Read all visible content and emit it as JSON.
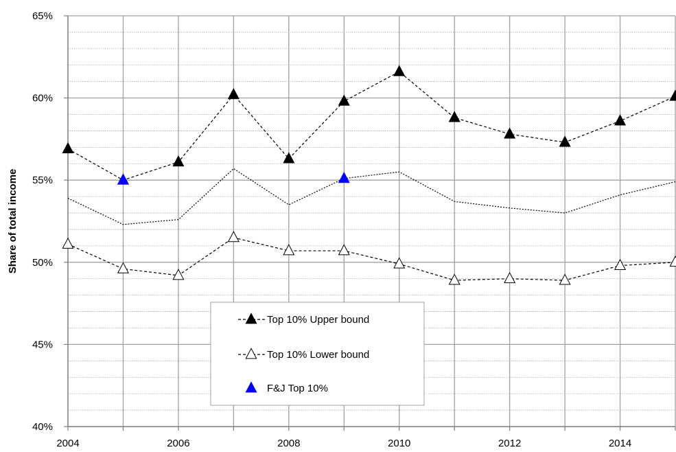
{
  "chart_data": {
    "type": "line",
    "title": "",
    "xlabel": "",
    "ylabel": "Share of total income",
    "xlim": [
      2004,
      2015
    ],
    "ylim": [
      40,
      65
    ],
    "x_ticks": [
      2004,
      2006,
      2008,
      2010,
      2012,
      2014
    ],
    "x_tick_labels": [
      "2004",
      "2006",
      "2008",
      "2010",
      "2012",
      "2014"
    ],
    "y_ticks": [
      40,
      45,
      50,
      55,
      60,
      65
    ],
    "y_tick_labels": [
      "40%",
      "45%",
      "50%",
      "55%",
      "60%",
      "65%"
    ],
    "grid": true,
    "legend_position": "lower-center",
    "x": [
      2004,
      2005,
      2006,
      2007,
      2008,
      2009,
      2010,
      2011,
      2012,
      2013,
      2014,
      2015
    ],
    "series": [
      {
        "name": "Top 10% Upper bound",
        "values": [
          56.9,
          55.0,
          56.1,
          60.2,
          56.3,
          59.8,
          61.6,
          58.8,
          57.8,
          57.3,
          58.6,
          60.1
        ],
        "color": "#000000",
        "line": "dashed",
        "marker": "filled-triangle"
      },
      {
        "name": "Top 10% Lower bound",
        "values": [
          51.1,
          49.6,
          49.2,
          51.5,
          50.7,
          50.7,
          49.9,
          48.9,
          49.0,
          48.9,
          49.8,
          50.0
        ],
        "color": "#000000",
        "line": "dashed",
        "marker": "open-triangle"
      },
      {
        "name": "",
        "values": [
          53.9,
          52.3,
          52.6,
          55.7,
          53.5,
          55.1,
          55.5,
          53.7,
          53.3,
          53.0,
          54.1,
          54.9
        ],
        "color": "#000000",
        "line": "dotted",
        "marker": "none"
      },
      {
        "name": "F&J Top 10%",
        "x": [
          2005,
          2009
        ],
        "values": [
          55.0,
          55.1
        ],
        "color": "#0000ff",
        "line": "none",
        "marker": "filled-triangle"
      }
    ]
  }
}
